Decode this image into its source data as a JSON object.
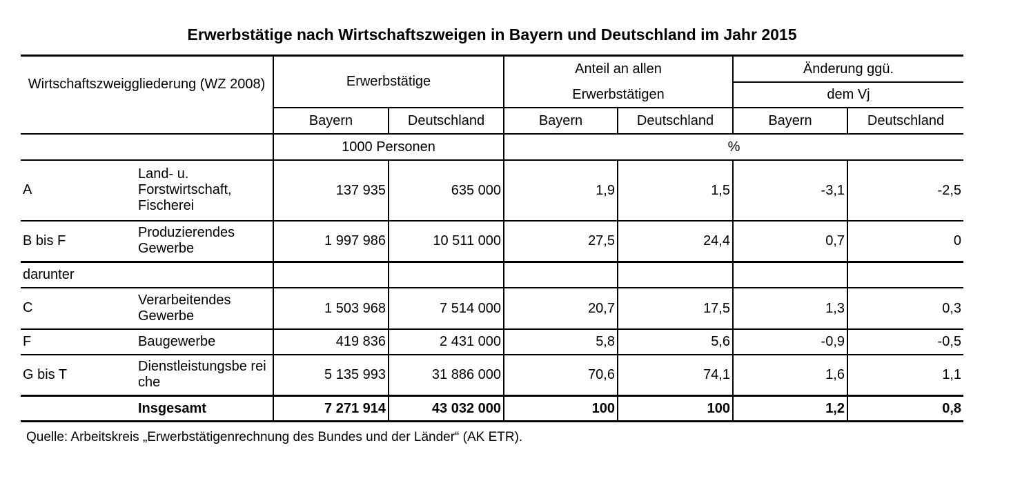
{
  "title": "Erwerbstätige nach Wirtschaftszweigen in Bayern und Deutschland im Jahr 2015",
  "header": {
    "wz_label": "Wirtschaftszweiggliederung (WZ 2008)",
    "erwerbstaetige": "Erwerbstätige",
    "anteil_line1": "Anteil an allen",
    "anteil_line2": "Erwerbstätigen",
    "aenderung_line1": "Änderung ggü.",
    "aenderung_line2": "dem Vj",
    "bayern": "Bayern",
    "deutschland": "Deutschland",
    "unit_persons": "1000 Personen",
    "unit_percent": "%"
  },
  "rows": [
    {
      "code": "A",
      "label": "Land- u. Forstwirtschaft, Fischerei",
      "erw_by": "137 935",
      "erw_de": "635 000",
      "ant_by": "1,9",
      "ant_de": "1,5",
      "aen_by": "-3,1",
      "aen_de": "-2,5"
    },
    {
      "code": "B bis F",
      "label": "Produzierendes Gewerbe",
      "erw_by": "1 997 986",
      "erw_de": "10 511 000",
      "ant_by": "27,5",
      "ant_de": "24,4",
      "aen_by": "0,7",
      "aen_de": "0"
    },
    {
      "code": "darunter",
      "label": "",
      "erw_by": "",
      "erw_de": "",
      "ant_by": "",
      "ant_de": "",
      "aen_by": "",
      "aen_de": ""
    },
    {
      "code": "C",
      "label": "Verarbeitendes Gewerbe",
      "erw_by": "1 503 968",
      "erw_de": "7 514 000",
      "ant_by": "20,7",
      "ant_de": "17,5",
      "aen_by": "1,3",
      "aen_de": "0,3"
    },
    {
      "code": "F",
      "label": "Baugewerbe",
      "erw_by": "419 836",
      "erw_de": "2 431 000",
      "ant_by": "5,8",
      "ant_de": "5,6",
      "aen_by": "-0,9",
      "aen_de": "-0,5"
    },
    {
      "code": "G bis T",
      "label": "Dienstleistungsbe reiche",
      "erw_by": "5 135 993",
      "erw_de": "31 886 000",
      "ant_by": "70,6",
      "ant_de": "74,1",
      "aen_by": "1,6",
      "aen_de": "1,1"
    }
  ],
  "total": {
    "code": "",
    "label": "Insgesamt",
    "erw_by": "7 271 914",
    "erw_de": "43 032 000",
    "ant_by": "100",
    "ant_de": "100",
    "aen_by": "1,2",
    "aen_de": "0,8"
  },
  "source": "Quelle: Arbeitskreis „Erwerbstätigenrechnung des Bundes und der Länder“ (AK ETR)."
}
